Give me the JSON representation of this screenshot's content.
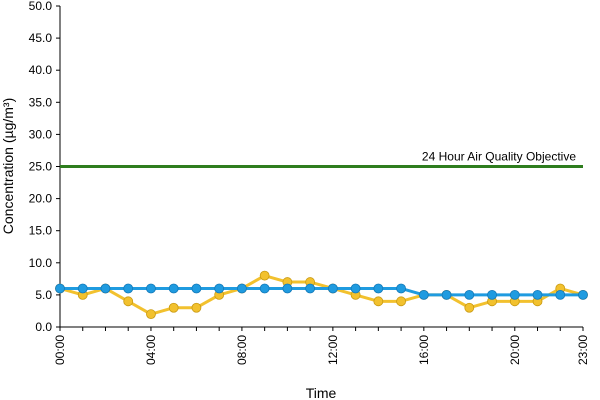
{
  "chart_data": {
    "type": "line",
    "xlabel": "Time",
    "ylabel": "Concentration (µg/m³)",
    "ylim": [
      0,
      50
    ],
    "yticks": [
      "0.0",
      "5.0",
      "10.0",
      "15.0",
      "20.0",
      "25.0",
      "30.0",
      "35.0",
      "40.0",
      "45.0",
      "50.0"
    ],
    "x": [
      "00:00",
      "01:00",
      "02:00",
      "03:00",
      "04:00",
      "05:00",
      "06:00",
      "07:00",
      "08:00",
      "09:00",
      "10:00",
      "11:00",
      "12:00",
      "13:00",
      "14:00",
      "15:00",
      "16:00",
      "17:00",
      "18:00",
      "19:00",
      "20:00",
      "21:00",
      "22:00",
      "23:00"
    ],
    "xtick_labels": [
      "00:00",
      "04:00",
      "08:00",
      "12:00",
      "16:00",
      "20:00",
      "23:00"
    ],
    "grid": false,
    "reference_line": {
      "value": 25,
      "label": "24 Hour Air Quality Objective",
      "color": "#2e7d1e"
    },
    "series": [
      {
        "color": "#f2c12e",
        "values": [
          6,
          5,
          6,
          4,
          2,
          3,
          3,
          5,
          6,
          8,
          7,
          7,
          6,
          5,
          4,
          4,
          5,
          5,
          3,
          4,
          4,
          4,
          6,
          5
        ]
      },
      {
        "color": "#1f9be0",
        "values": [
          6,
          6,
          6,
          6,
          6,
          6,
          6,
          6,
          6,
          6,
          6,
          6,
          6,
          6,
          6,
          6,
          5,
          5,
          5,
          5,
          5,
          5,
          5,
          5
        ]
      }
    ]
  }
}
